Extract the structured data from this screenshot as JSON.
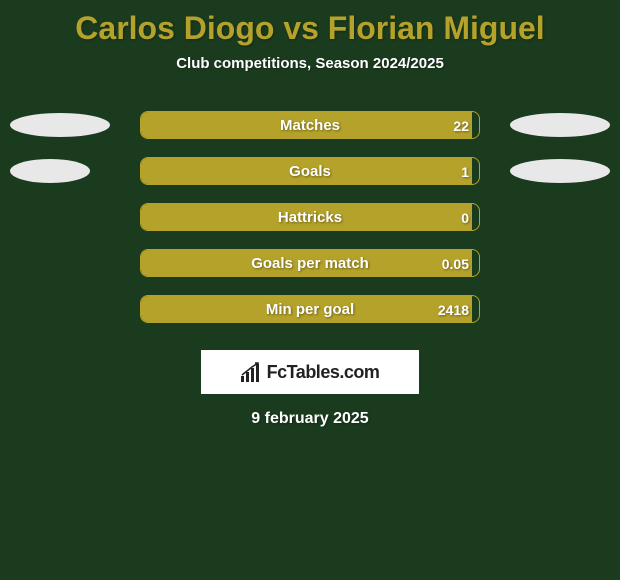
{
  "colors": {
    "background": "#1b3b1f",
    "title": "#b4a22a",
    "text_light": "#ffffff",
    "ellipse_fill": "#e8e8e8",
    "bar_border": "#b4a22a",
    "bar_fill": "#b4a22a",
    "brand_bg": "#ffffff",
    "brand_text": "#222222"
  },
  "title": "Carlos Diogo vs Florian Miguel",
  "subtitle": "Club competitions, Season 2024/2025",
  "date": "9 february 2025",
  "brand": "FcTables.com",
  "stats": [
    {
      "label": "Matches",
      "value": "22",
      "fill_pct": 98,
      "left_ellipse_w": 100,
      "right_ellipse_w": 100,
      "show_ellipses": true
    },
    {
      "label": "Goals",
      "value": "1",
      "fill_pct": 98,
      "left_ellipse_w": 80,
      "right_ellipse_w": 100,
      "show_ellipses": true
    },
    {
      "label": "Hattricks",
      "value": "0",
      "fill_pct": 98,
      "left_ellipse_w": 0,
      "right_ellipse_w": 0,
      "show_ellipses": false
    },
    {
      "label": "Goals per match",
      "value": "0.05",
      "fill_pct": 98,
      "left_ellipse_w": 0,
      "right_ellipse_w": 0,
      "show_ellipses": false
    },
    {
      "label": "Min per goal",
      "value": "2418",
      "fill_pct": 98,
      "left_ellipse_w": 0,
      "right_ellipse_w": 0,
      "show_ellipses": false
    }
  ]
}
